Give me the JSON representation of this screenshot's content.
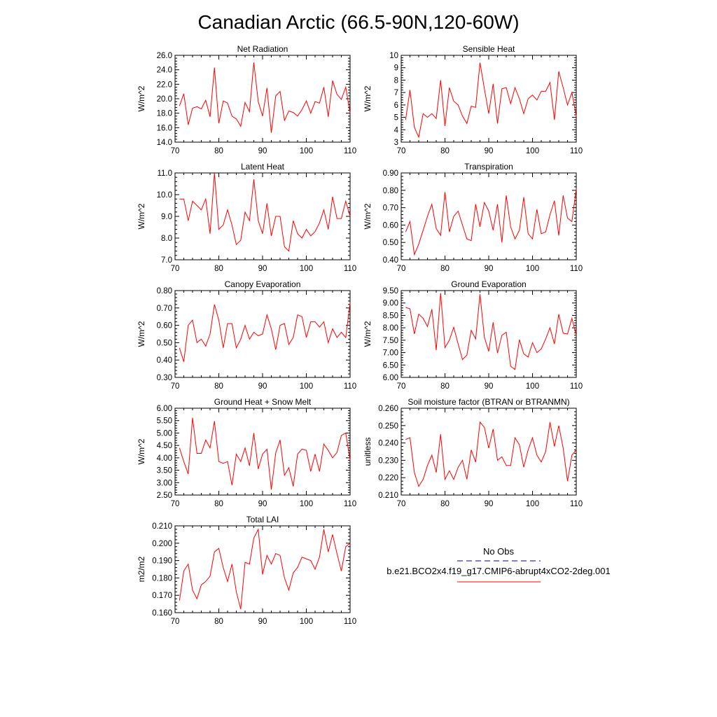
{
  "title": "Canadian Arctic (66.5-90N,120-60W)",
  "colors": {
    "model": "#ff0000",
    "obs": "#00008b",
    "axis": "#000000"
  },
  "legend": {
    "obs_label": "No Obs",
    "model_label": "b.e21.BCO2x4.f19_g17.CMIP6-abrupt4xCO2-2deg.001"
  },
  "chart_data": [
    {
      "type": "line",
      "title": "Net Radiation",
      "ylabel": "W/m^2",
      "xlim": [
        70,
        110
      ],
      "ylim": [
        14.0,
        26.0
      ],
      "yticks": [
        "14.0",
        "16.0",
        "18.0",
        "20.0",
        "22.0",
        "24.0",
        "26.0"
      ],
      "xticks": [
        "70",
        "80",
        "90",
        "100",
        "110"
      ],
      "x_start": 71,
      "values": [
        19.0,
        20.7,
        16.4,
        18.7,
        18.9,
        18.6,
        19.8,
        17.5,
        24.3,
        16.6,
        19.7,
        19.4,
        17.6,
        17.2,
        16.2,
        19.5,
        18.2,
        25.0,
        19.6,
        17.6,
        21.5,
        15.3,
        20.4,
        21.0,
        17.0,
        18.3,
        18.1,
        17.6,
        18.5,
        19.7,
        18.0,
        19.6,
        19.4,
        21.6,
        17.5,
        22.5,
        20.6,
        19.9,
        21.6,
        18.0
      ]
    },
    {
      "type": "line",
      "title": "Sensible Heat",
      "ylabel": "W/m^2",
      "xlim": [
        70,
        110
      ],
      "ylim": [
        3,
        10
      ],
      "yticks": [
        "3",
        "4",
        "5",
        "6",
        "7",
        "8",
        "9",
        "10"
      ],
      "xticks": [
        "70",
        "80",
        "90",
        "100",
        "110"
      ],
      "x_start": 71,
      "values": [
        4.8,
        7.2,
        4.2,
        3.4,
        5.3,
        5.0,
        5.3,
        4.9,
        8.0,
        4.3,
        7.4,
        6.3,
        6.0,
        5.1,
        4.5,
        5.9,
        5.8,
        9.4,
        7.3,
        5.3,
        7.7,
        4.5,
        7.3,
        7.4,
        6.1,
        7.4,
        6.5,
        5.3,
        6.5,
        6.8,
        6.4,
        7.1,
        7.1,
        7.8,
        4.8,
        8.7,
        7.4,
        6.0,
        7.0,
        5.1
      ]
    },
    {
      "type": "line",
      "title": "Latent Heat",
      "ylabel": "W/m^2",
      "xlim": [
        70,
        110
      ],
      "ylim": [
        7.0,
        11.0
      ],
      "yticks": [
        "7.0",
        "8.0",
        "9.0",
        "10.0",
        "11.0"
      ],
      "xticks": [
        "70",
        "80",
        "90",
        "100",
        "110"
      ],
      "x_start": 71,
      "values": [
        9.8,
        9.8,
        8.8,
        9.7,
        9.5,
        9.3,
        9.8,
        8.2,
        11.0,
        8.4,
        8.6,
        9.3,
        8.6,
        7.7,
        7.9,
        9.2,
        8.8,
        10.7,
        8.8,
        8.2,
        9.6,
        8.1,
        9.0,
        9.0,
        7.6,
        7.4,
        8.8,
        8.2,
        8.0,
        8.4,
        8.1,
        8.3,
        8.7,
        9.3,
        8.4,
        9.9,
        8.9,
        8.9,
        9.7,
        9.0
      ]
    },
    {
      "type": "line",
      "title": "Transpiration",
      "ylabel": "W/m^2",
      "xlim": [
        70,
        110
      ],
      "ylim": [
        0.4,
        0.9
      ],
      "yticks": [
        "0.40",
        "0.50",
        "0.60",
        "0.70",
        "0.80",
        "0.90"
      ],
      "xticks": [
        "70",
        "80",
        "90",
        "100",
        "110"
      ],
      "x_start": 71,
      "values": [
        0.56,
        0.62,
        0.43,
        0.49,
        0.57,
        0.65,
        0.72,
        0.58,
        0.54,
        0.79,
        0.56,
        0.65,
        0.68,
        0.6,
        0.52,
        0.51,
        0.72,
        0.59,
        0.73,
        0.68,
        0.57,
        0.72,
        0.5,
        0.77,
        0.59,
        0.52,
        0.57,
        0.76,
        0.55,
        0.52,
        0.69,
        0.55,
        0.56,
        0.66,
        0.74,
        0.54,
        0.77,
        0.64,
        0.62,
        0.81
      ]
    },
    {
      "type": "line",
      "title": "Canopy Evaporation",
      "ylabel": "W/m^2",
      "xlim": [
        70,
        110
      ],
      "ylim": [
        0.3,
        0.8
      ],
      "yticks": [
        "0.30",
        "0.40",
        "0.50",
        "0.60",
        "0.70",
        "0.80"
      ],
      "xticks": [
        "70",
        "80",
        "90",
        "100",
        "110"
      ],
      "x_start": 71,
      "values": [
        0.47,
        0.39,
        0.6,
        0.63,
        0.5,
        0.52,
        0.48,
        0.55,
        0.72,
        0.63,
        0.47,
        0.61,
        0.61,
        0.47,
        0.52,
        0.6,
        0.52,
        0.56,
        0.54,
        0.55,
        0.66,
        0.58,
        0.46,
        0.6,
        0.61,
        0.49,
        0.53,
        0.66,
        0.65,
        0.53,
        0.62,
        0.62,
        0.59,
        0.62,
        0.5,
        0.58,
        0.53,
        0.56,
        0.53,
        0.73
      ]
    },
    {
      "type": "line",
      "title": "Ground Evaporation",
      "ylabel": "W/m^2",
      "xlim": [
        70,
        110
      ],
      "ylim": [
        6.0,
        9.5
      ],
      "yticks": [
        "6.00",
        "6.50",
        "7.00",
        "7.50",
        "8.00",
        "8.50",
        "9.00",
        "9.50"
      ],
      "xticks": [
        "70",
        "80",
        "90",
        "100",
        "110"
      ],
      "x_start": 71,
      "values": [
        8.82,
        8.77,
        7.75,
        8.55,
        8.38,
        8.05,
        8.75,
        7.1,
        9.4,
        7.2,
        7.5,
        8.02,
        7.35,
        6.72,
        6.9,
        7.9,
        7.55,
        9.35,
        7.62,
        7.05,
        8.22,
        6.98,
        7.7,
        7.82,
        6.45,
        6.32,
        7.52,
        6.95,
        6.82,
        7.4,
        7.0,
        7.15,
        7.55,
        8.0,
        7.35,
        8.55,
        7.78,
        7.75,
        8.38,
        7.7
      ]
    },
    {
      "type": "line",
      "title": "Ground Heat + Snow Melt",
      "ylabel": "W/m^2",
      "xlim": [
        70,
        110
      ],
      "ylim": [
        2.5,
        6.0
      ],
      "yticks": [
        "2.50",
        "3.00",
        "3.50",
        "4.00",
        "4.50",
        "5.00",
        "5.50",
        "6.00"
      ],
      "xticks": [
        "70",
        "80",
        "90",
        "100",
        "110"
      ],
      "x_start": 71,
      "values": [
        4.4,
        3.85,
        3.35,
        5.62,
        4.18,
        4.18,
        4.72,
        4.4,
        5.48,
        3.85,
        3.78,
        3.85,
        2.9,
        4.15,
        3.85,
        4.4,
        3.68,
        5.0,
        3.55,
        4.15,
        4.35,
        2.72,
        4.2,
        4.72,
        3.3,
        3.6,
        2.85,
        4.15,
        4.35,
        4.3,
        3.45,
        4.15,
        3.45,
        4.55,
        4.3,
        4.0,
        4.22,
        4.9,
        5.0,
        3.9
      ]
    },
    {
      "type": "line",
      "title": "Soil moisture factor (BTRAN or BTRANMN)",
      "ylabel": "unitless",
      "xlim": [
        70,
        110
      ],
      "ylim": [
        0.21,
        0.26
      ],
      "yticks": [
        "0.210",
        "0.220",
        "0.230",
        "0.240",
        "0.250",
        "0.260"
      ],
      "xticks": [
        "70",
        "80",
        "90",
        "100",
        "110"
      ],
      "x_start": 71,
      "values": [
        0.242,
        0.243,
        0.223,
        0.215,
        0.219,
        0.227,
        0.233,
        0.223,
        0.245,
        0.219,
        0.224,
        0.219,
        0.226,
        0.23,
        0.219,
        0.236,
        0.229,
        0.252,
        0.249,
        0.237,
        0.248,
        0.23,
        0.232,
        0.227,
        0.227,
        0.243,
        0.239,
        0.226,
        0.236,
        0.243,
        0.233,
        0.229,
        0.235,
        0.252,
        0.238,
        0.25,
        0.237,
        0.218,
        0.233,
        0.236
      ]
    },
    {
      "type": "line",
      "title": "Total LAI",
      "ylabel": "m2/m2",
      "xlim": [
        70,
        110
      ],
      "ylim": [
        0.16,
        0.21
      ],
      "yticks": [
        "0.160",
        "0.170",
        "0.180",
        "0.190",
        "0.200",
        "0.210"
      ],
      "xticks": [
        "70",
        "80",
        "90",
        "100",
        "110"
      ],
      "x_start": 71,
      "values": [
        0.167,
        0.184,
        0.188,
        0.173,
        0.168,
        0.176,
        0.178,
        0.181,
        0.195,
        0.197,
        0.186,
        0.178,
        0.188,
        0.172,
        0.162,
        0.189,
        0.188,
        0.203,
        0.208,
        0.182,
        0.193,
        0.188,
        0.194,
        0.193,
        0.18,
        0.173,
        0.183,
        0.186,
        0.192,
        0.191,
        0.19,
        0.185,
        0.192,
        0.208,
        0.195,
        0.205,
        0.194,
        0.184,
        0.198,
        0.2
      ]
    }
  ]
}
